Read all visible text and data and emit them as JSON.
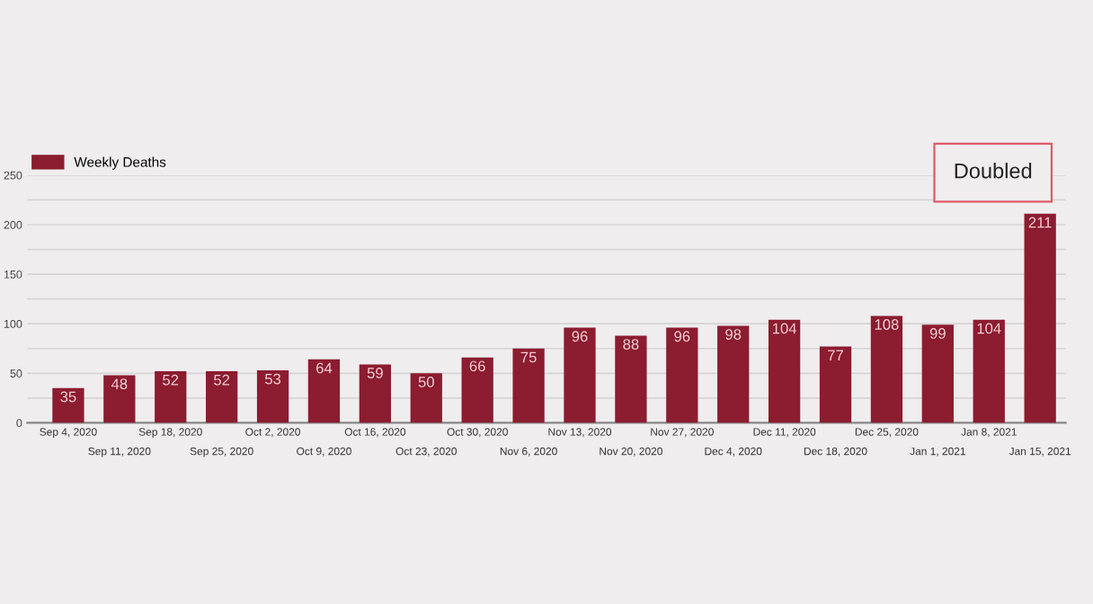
{
  "chart_data": {
    "type": "bar",
    "categories": [
      "Sep 4, 2020",
      "Sep 11, 2020",
      "Sep 18, 2020",
      "Sep 25, 2020",
      "Oct 2, 2020",
      "Oct 9, 2020",
      "Oct 16, 2020",
      "Oct 23, 2020",
      "Oct 30, 2020",
      "Nov 6, 2020",
      "Nov 13, 2020",
      "Nov 20, 2020",
      "Nov 27, 2020",
      "Dec 4, 2020",
      "Dec 11, 2020",
      "Dec 18, 2020",
      "Dec 25, 2020",
      "Jan 1, 2021",
      "Jan 8, 2021",
      "Jan 15, 2021"
    ],
    "series": [
      {
        "name": "Weekly Deaths",
        "color": "#8c1c30",
        "values": [
          35,
          48,
          52,
          52,
          53,
          64,
          59,
          50,
          66,
          75,
          96,
          88,
          96,
          98,
          104,
          77,
          108,
          99,
          104,
          211
        ]
      }
    ],
    "ylim": [
      0,
      250
    ],
    "yticks": [
      0,
      {
        "value": 25,
        "label": null
      },
      50,
      {
        "value": 75,
        "label": null
      },
      100,
      {
        "value": 125,
        "label": null
      },
      150,
      {
        "value": 175,
        "label": null
      },
      200,
      {
        "value": 225,
        "label": null
      },
      250
    ],
    "grid": "y",
    "legend": "top left",
    "data_labels": true,
    "annotations": [
      "Doubled"
    ]
  }
}
